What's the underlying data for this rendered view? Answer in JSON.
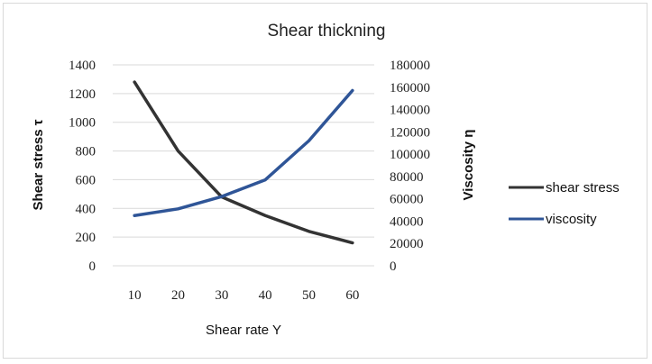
{
  "chart_data": {
    "type": "line",
    "title": "Shear thickning",
    "xlabel": "Shear rate Y",
    "ylabel": "Shear stress τ",
    "y2label": "Viscosity η",
    "categories": [
      "10",
      "20",
      "30",
      "40",
      "50",
      "60"
    ],
    "ylim": [
      0,
      1400
    ],
    "y_ticks": [
      "0",
      "200",
      "400",
      "600",
      "800",
      "1000",
      "1200",
      "1400"
    ],
    "y2lim": [
      0,
      180000
    ],
    "y2_ticks": [
      "0",
      "20000",
      "40000",
      "60000",
      "80000",
      "100000",
      "120000",
      "140000",
      "160000",
      "180000"
    ],
    "grid": true,
    "legend_position": "right",
    "series": [
      {
        "name": "shear stress",
        "axis": "left",
        "color": "#333333",
        "values": [
          1280,
          800,
          480,
          350,
          240,
          160
        ]
      },
      {
        "name": "viscosity",
        "axis": "right",
        "color": "#2f5597",
        "values": [
          45000,
          51000,
          62000,
          77000,
          112000,
          157000
        ]
      }
    ]
  }
}
